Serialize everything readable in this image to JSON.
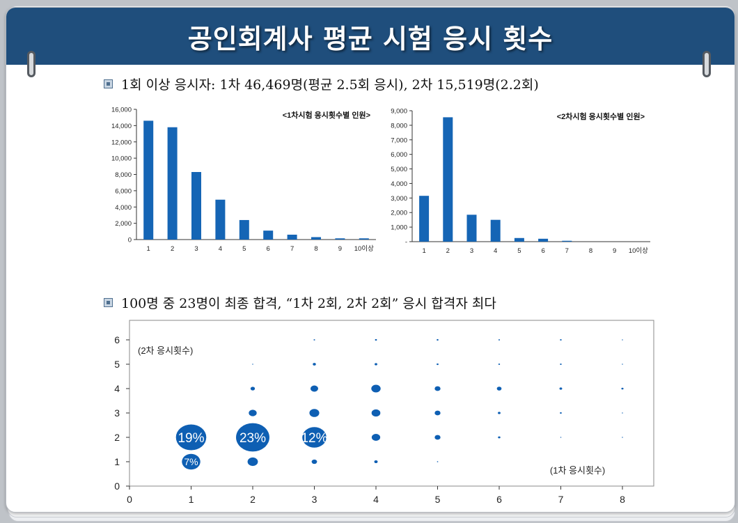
{
  "header": {
    "title": "공인회계사 평균 시험 응시 횟수"
  },
  "section1": {
    "text": "1회 이상 응시자: 1차 46,469명(평균 2.5회 응시), 2차 15,519명(2.2회)"
  },
  "section2": {
    "text": "100명 중 23명이 최종 합격, “1차 2회, 2차 2회” 응시 합격자 최다"
  },
  "colors": {
    "header": "#1f4e7c",
    "bar": "#1565b5",
    "bubble": "#0e5fb3"
  },
  "chart_data": [
    {
      "type": "bar",
      "title": "<1차시험 응시횟수별 인원>",
      "categories": [
        "1",
        "2",
        "3",
        "4",
        "5",
        "6",
        "7",
        "8",
        "9",
        "10이상"
      ],
      "values": [
        14600,
        13800,
        8300,
        4900,
        2400,
        1100,
        600,
        300,
        150,
        150
      ],
      "ylim": [
        0,
        16000
      ],
      "yticks": [
        0,
        2000,
        4000,
        6000,
        8000,
        10000,
        12000,
        14000,
        16000
      ],
      "ytick_labels": [
        "0",
        "2,000",
        "4,000",
        "6,000",
        "8,000",
        "10,000",
        "12,000",
        "14,000",
        "16,000"
      ]
    },
    {
      "type": "bar",
      "title": "<2차시험 응시횟수별 인원>",
      "categories": [
        "1",
        "2",
        "3",
        "4",
        "5",
        "6",
        "7",
        "8",
        "9",
        "10이상"
      ],
      "values": [
        3150,
        8550,
        1850,
        1500,
        250,
        200,
        60,
        0,
        0,
        0
      ],
      "ylim": [
        0,
        9000
      ],
      "yticks": [
        0,
        1000,
        2000,
        3000,
        4000,
        5000,
        6000,
        7000,
        8000,
        9000
      ],
      "ytick_labels": [
        "-",
        "1,000",
        "2,000",
        "3,000",
        "4,000",
        "5,000",
        "6,000",
        "7,000",
        "8,000",
        "9,000"
      ]
    },
    {
      "type": "scatter",
      "subtype": "bubble",
      "xlabel": "(1차 응시횟수)",
      "ylabel": "(2차 응시횟수)",
      "xlim": [
        0,
        8
      ],
      "ylim": [
        0,
        6
      ],
      "xticks": [
        "0",
        "1",
        "2",
        "3",
        "4",
        "5",
        "6",
        "7",
        "8"
      ],
      "yticks": [
        "0",
        "1",
        "2",
        "3",
        "4",
        "5",
        "6"
      ],
      "points": [
        {
          "x": 1,
          "y": 2,
          "size": 19,
          "label": "19%"
        },
        {
          "x": 1,
          "y": 1,
          "size": 7,
          "label": "7%"
        },
        {
          "x": 2,
          "y": 2,
          "size": 23,
          "label": "23%"
        },
        {
          "x": 2,
          "y": 1,
          "size": 2.2
        },
        {
          "x": 2,
          "y": 3,
          "size": 1.3
        },
        {
          "x": 2,
          "y": 4,
          "size": 0.4
        },
        {
          "x": 2,
          "y": 5,
          "size": 0.02
        },
        {
          "x": 3,
          "y": 2,
          "size": 12,
          "label": "12%"
        },
        {
          "x": 3,
          "y": 3,
          "size": 2
        },
        {
          "x": 3,
          "y": 4,
          "size": 1.2
        },
        {
          "x": 3,
          "y": 1,
          "size": 0.6
        },
        {
          "x": 3,
          "y": 5,
          "size": 0.2
        },
        {
          "x": 3,
          "y": 6,
          "size": 0.05
        },
        {
          "x": 4,
          "y": 4,
          "size": 1.8
        },
        {
          "x": 4,
          "y": 3,
          "size": 1.6
        },
        {
          "x": 4,
          "y": 2,
          "size": 1.5
        },
        {
          "x": 4,
          "y": 1,
          "size": 0.25
        },
        {
          "x": 4,
          "y": 5,
          "size": 0.15
        },
        {
          "x": 4,
          "y": 6,
          "size": 0.08
        },
        {
          "x": 5,
          "y": 4,
          "size": 0.7
        },
        {
          "x": 5,
          "y": 3,
          "size": 0.7
        },
        {
          "x": 5,
          "y": 2,
          "size": 0.7
        },
        {
          "x": 5,
          "y": 1,
          "size": 0.03
        },
        {
          "x": 5,
          "y": 5,
          "size": 0.08
        },
        {
          "x": 5,
          "y": 6,
          "size": 0.07
        },
        {
          "x": 6,
          "y": 4,
          "size": 0.45
        },
        {
          "x": 6,
          "y": 3,
          "size": 0.15
        },
        {
          "x": 6,
          "y": 2,
          "size": 0.12
        },
        {
          "x": 6,
          "y": 5,
          "size": 0.06
        },
        {
          "x": 6,
          "y": 6,
          "size": 0.05
        },
        {
          "x": 7,
          "y": 4,
          "size": 0.15
        },
        {
          "x": 7,
          "y": 3,
          "size": 0.07
        },
        {
          "x": 7,
          "y": 2,
          "size": 0.02
        },
        {
          "x": 7,
          "y": 5,
          "size": 0.06
        },
        {
          "x": 7,
          "y": 6,
          "size": 0.06
        },
        {
          "x": 8,
          "y": 4,
          "size": 0.1
        },
        {
          "x": 8,
          "y": 3,
          "size": 0.01
        },
        {
          "x": 8,
          "y": 2,
          "size": 0.01
        },
        {
          "x": 8,
          "y": 5,
          "size": 0.005
        },
        {
          "x": 8,
          "y": 6,
          "size": 0.005
        }
      ]
    }
  ]
}
